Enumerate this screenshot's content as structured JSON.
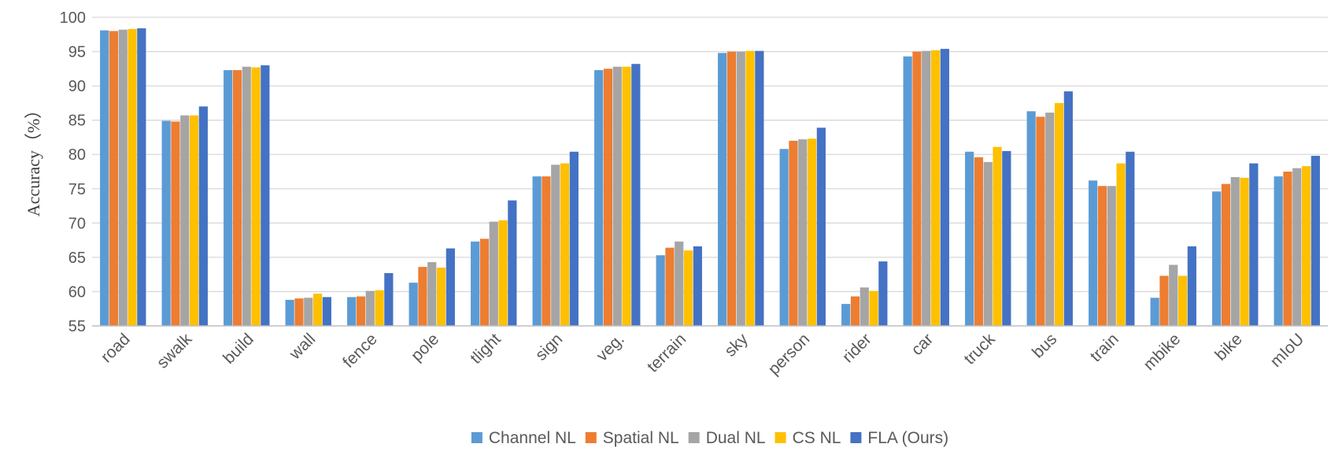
{
  "chart_data": {
    "type": "bar",
    "title": "",
    "xlabel": "",
    "ylabel": "Accuracy（%）",
    "ylim": [
      55,
      100
    ],
    "yticks": [
      55,
      60,
      65,
      70,
      75,
      80,
      85,
      90,
      95,
      100
    ],
    "grid": true,
    "legend_position": "bottom",
    "categories": [
      "road",
      "swalk",
      "build",
      "wall",
      "fence",
      "pole",
      "tlight",
      "sign",
      "veg.",
      "terrain",
      "sky",
      "person",
      "rider",
      "car",
      "truck",
      "bus",
      "train",
      "mbike",
      "bike",
      "mIoU"
    ],
    "series": [
      {
        "name": "Channel NL",
        "color": "#5B9BD5",
        "values": [
          98.1,
          84.9,
          92.3,
          58.8,
          59.2,
          61.3,
          67.3,
          76.8,
          92.3,
          65.3,
          94.8,
          80.8,
          58.2,
          94.3,
          80.4,
          86.3,
          76.2,
          59.1,
          74.6,
          76.8
        ]
      },
      {
        "name": "Spatial NL",
        "color": "#ED7D31",
        "values": [
          98.0,
          84.8,
          92.3,
          59.0,
          59.3,
          63.6,
          67.7,
          76.8,
          92.5,
          66.4,
          95.0,
          82.0,
          59.3,
          95.0,
          79.6,
          85.5,
          75.4,
          62.3,
          75.7,
          77.5
        ]
      },
      {
        "name": "Dual NL",
        "color": "#A5A5A5",
        "values": [
          98.2,
          85.7,
          92.8,
          59.1,
          60.1,
          64.3,
          70.2,
          78.5,
          92.8,
          67.3,
          95.0,
          82.2,
          60.6,
          95.1,
          78.9,
          86.1,
          75.4,
          63.9,
          76.7,
          78.0
        ]
      },
      {
        "name": "CS NL",
        "color": "#FFC000",
        "values": [
          98.3,
          85.7,
          92.7,
          59.7,
          60.2,
          63.5,
          70.4,
          78.7,
          92.8,
          66.0,
          95.1,
          82.3,
          60.1,
          95.2,
          81.1,
          87.5,
          78.7,
          62.3,
          76.6,
          78.3
        ]
      },
      {
        "name": "FLA (Ours)",
        "color": "#4472C4",
        "values": [
          98.4,
          87.0,
          93.0,
          59.2,
          62.7,
          66.3,
          73.3,
          80.4,
          93.2,
          66.6,
          95.1,
          83.9,
          64.4,
          95.4,
          80.5,
          89.2,
          80.4,
          66.6,
          78.7,
          79.8
        ]
      }
    ]
  }
}
